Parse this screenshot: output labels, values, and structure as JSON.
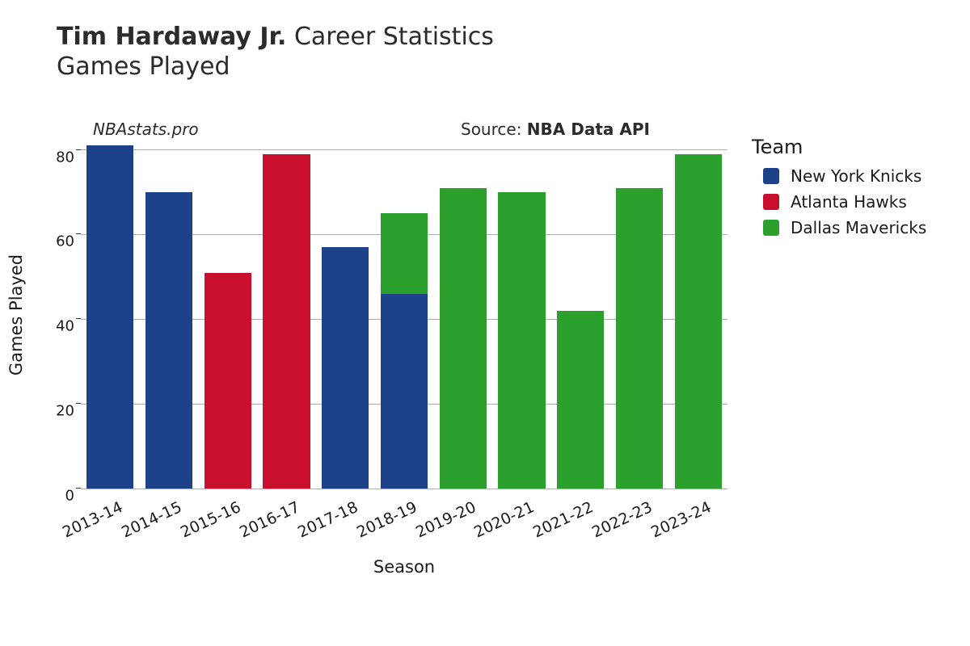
{
  "title": {
    "line1_bold": "Tim Hardaway Jr.",
    "line1_rest": " Career Statistics",
    "line2": "Games Played",
    "fontsize": 30
  },
  "credits": {
    "left": "NBAstats.pro",
    "right_prefix": "Source: ",
    "right_bold": "NBA Data API",
    "fontsize": 20
  },
  "chart": {
    "type": "stacked-bar",
    "xlabel": "Season",
    "ylabel": "Games Played",
    "label_fontsize": 21,
    "tick_fontsize": 18,
    "ylim": [
      0,
      82
    ],
    "yticks": [
      0,
      20,
      40,
      60,
      80
    ],
    "background_color": "#ffffff",
    "grid_color": "#b0b0b0",
    "bar_width_ratio": 0.8,
    "xtick_rotation_deg": -25,
    "seasons": [
      "2013-14",
      "2014-15",
      "2015-16",
      "2016-17",
      "2017-18",
      "2018-19",
      "2019-20",
      "2020-21",
      "2021-22",
      "2022-23",
      "2023-24"
    ],
    "series": [
      {
        "team": "New York Knicks",
        "color": "#1d4289",
        "values": [
          81,
          70,
          0,
          0,
          57,
          46,
          0,
          0,
          0,
          0,
          0
        ]
      },
      {
        "team": "Atlanta Hawks",
        "color": "#c8102e",
        "values": [
          0,
          0,
          51,
          79,
          0,
          0,
          0,
          0,
          0,
          0,
          0
        ]
      },
      {
        "team": "Dallas Mavericks",
        "color": "#2ca02c",
        "values": [
          0,
          0,
          0,
          0,
          0,
          19,
          71,
          70,
          42,
          71,
          79
        ]
      }
    ]
  },
  "legend": {
    "title": "Team",
    "title_fontsize": 24,
    "item_fontsize": 20
  }
}
